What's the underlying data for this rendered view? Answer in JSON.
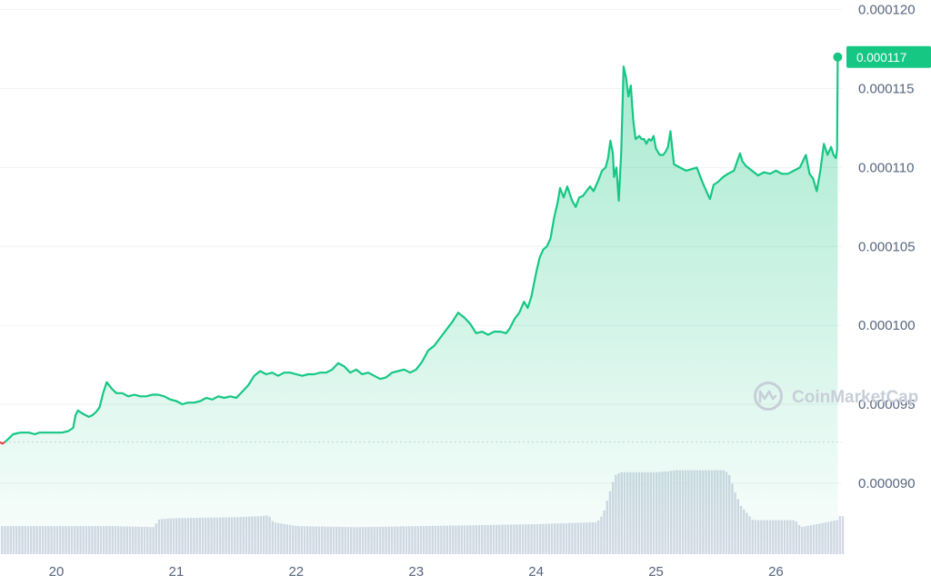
{
  "watermark": {
    "text": "CoinMarketCap",
    "logo": "coinmarketcap-logo-icon"
  },
  "chart_data": {
    "type": "area",
    "title": "",
    "xlabel": "",
    "ylabel": "",
    "x_ticks": [
      "20",
      "21",
      "22",
      "23",
      "24",
      "25",
      "26"
    ],
    "y_ticks": [
      "0.000090",
      "0.000095",
      "0.000100",
      "0.000105",
      "0.000110",
      "0.000115",
      "0.000120"
    ],
    "y_tick_values": [
      9e-05,
      9.5e-05,
      0.0001,
      0.000105,
      0.00011,
      0.000115,
      0.00012
    ],
    "ylim": [
      8.55e-05,
      0.0001205
    ],
    "xlim": [
      19.53,
      26.55
    ],
    "grid": true,
    "baseline_price": 9.26e-05,
    "current_price": {
      "label": "0.000117",
      "value": 0.000117
    },
    "colors": {
      "up": "#16c784",
      "down": "#ea3943",
      "badge": "#16c784",
      "volume": "#d4d8e6",
      "grid": "#eff2f5",
      "axis_text": "#58667e"
    },
    "series": [
      {
        "type": "line",
        "x": [
          19.53,
          19.55,
          19.57,
          19.6,
          19.64,
          19.7,
          19.77,
          19.82,
          19.86,
          19.9,
          19.95,
          20.0,
          20.05,
          20.1,
          20.14,
          20.16,
          20.18,
          20.22,
          20.27,
          20.3,
          20.33,
          20.36,
          20.39,
          20.42,
          20.46,
          20.5,
          20.55,
          20.6,
          20.65,
          20.7,
          20.75,
          20.8,
          20.85,
          20.9,
          20.95,
          21.0,
          21.05,
          21.1,
          21.15,
          21.2,
          21.25,
          21.3,
          21.35,
          21.4,
          21.45,
          21.5,
          21.55,
          21.6,
          21.65,
          21.7,
          21.75,
          21.8,
          21.85,
          21.9,
          21.95,
          22.0,
          22.05,
          22.1,
          22.15,
          22.2,
          22.25,
          22.3,
          22.35,
          22.4,
          22.45,
          22.5,
          22.55,
          22.6,
          22.65,
          22.7,
          22.75,
          22.8,
          22.85,
          22.9,
          22.95,
          23.0,
          23.02,
          23.05,
          23.1,
          23.15,
          23.2,
          23.25,
          23.3,
          23.35,
          23.4,
          23.45,
          23.5,
          23.55,
          23.6,
          23.65,
          23.7,
          23.75,
          23.78,
          23.82,
          23.86,
          23.9,
          23.93,
          23.96,
          24.0,
          24.03,
          24.06,
          24.09,
          24.12,
          24.15,
          24.18,
          24.2,
          24.23,
          24.26,
          24.3,
          24.33,
          24.36,
          24.39,
          24.42,
          24.45,
          24.48,
          24.52,
          24.55,
          24.58,
          24.6,
          24.62,
          24.64,
          24.65,
          24.67,
          24.69,
          24.71,
          24.73,
          24.75,
          24.77,
          24.79,
          24.81,
          24.83,
          24.86,
          24.88,
          24.9,
          24.92,
          24.94,
          24.96,
          24.98,
          25.0,
          25.03,
          25.06,
          25.08,
          25.1,
          25.12,
          25.15,
          25.2,
          25.25,
          25.3,
          25.34,
          25.38,
          25.42,
          25.45,
          25.48,
          25.52,
          25.56,
          25.6,
          25.65,
          25.7,
          25.72,
          25.75,
          25.8,
          25.85,
          25.9,
          25.95,
          26.0,
          26.05,
          26.1,
          26.15,
          26.2,
          26.25,
          26.28,
          26.31,
          26.34,
          26.37,
          26.4,
          26.43,
          26.46,
          26.48,
          26.5,
          26.51,
          26.515
        ],
        "y": [
          9.26e-05,
          9.25e-05,
          9.26e-05,
          9.28e-05,
          9.31e-05,
          9.32e-05,
          9.32e-05,
          9.31e-05,
          9.32e-05,
          9.32e-05,
          9.32e-05,
          9.32e-05,
          9.32e-05,
          9.33e-05,
          9.35e-05,
          9.43e-05,
          9.46e-05,
          9.44e-05,
          9.42e-05,
          9.43e-05,
          9.45e-05,
          9.48e-05,
          9.57e-05,
          9.64e-05,
          9.6e-05,
          9.57e-05,
          9.57e-05,
          9.55e-05,
          9.56e-05,
          9.55e-05,
          9.55e-05,
          9.56e-05,
          9.56e-05,
          9.55e-05,
          9.53e-05,
          9.52e-05,
          9.5e-05,
          9.51e-05,
          9.51e-05,
          9.52e-05,
          9.54e-05,
          9.53e-05,
          9.55e-05,
          9.54e-05,
          9.55e-05,
          9.54e-05,
          9.58e-05,
          9.62e-05,
          9.68e-05,
          9.71e-05,
          9.69e-05,
          9.7e-05,
          9.68e-05,
          9.7e-05,
          9.7e-05,
          9.69e-05,
          9.68e-05,
          9.69e-05,
          9.69e-05,
          9.7e-05,
          9.7e-05,
          9.72e-05,
          9.76e-05,
          9.74e-05,
          9.7e-05,
          9.72e-05,
          9.69e-05,
          9.7e-05,
          9.68e-05,
          9.66e-05,
          9.67e-05,
          9.7e-05,
          9.71e-05,
          9.72e-05,
          9.7e-05,
          9.72e-05,
          9.74e-05,
          9.77e-05,
          9.84e-05,
          9.87e-05,
          9.92e-05,
          9.97e-05,
          0.0001002,
          0.0001008,
          0.0001005,
          0.0001001,
          9.95e-05,
          9.96e-05,
          9.94e-05,
          9.96e-05,
          9.96e-05,
          9.95e-05,
          9.98e-05,
          0.0001004,
          0.0001008,
          0.0001015,
          0.0001011,
          0.0001018,
          0.0001033,
          0.0001043,
          0.0001048,
          0.000105,
          0.0001055,
          0.0001068,
          0.0001078,
          0.0001087,
          0.0001081,
          0.0001088,
          0.0001079,
          0.0001075,
          0.0001081,
          0.0001082,
          0.0001085,
          0.0001088,
          0.0001085,
          0.0001092,
          0.0001098,
          0.00011,
          0.0001106,
          0.0001117,
          0.0001109,
          0.0001094,
          0.00011,
          0.0001079,
          0.000111,
          0.0001164,
          0.0001157,
          0.0001145,
          0.0001152,
          0.000113,
          0.0001118,
          0.000112,
          0.0001118,
          0.0001118,
          0.0001115,
          0.0001118,
          0.0001117,
          0.000112,
          0.0001112,
          0.0001108,
          0.0001108,
          0.000111,
          0.0001113,
          0.0001123,
          0.0001102,
          0.00011,
          0.0001098,
          0.0001099,
          0.00011,
          0.0001092,
          0.0001085,
          0.000108,
          0.0001089,
          0.0001091,
          0.0001094,
          0.0001096,
          0.0001098,
          0.0001109,
          0.0001104,
          0.0001101,
          0.0001098,
          0.0001095,
          0.0001097,
          0.0001096,
          0.0001098,
          0.0001096,
          0.0001096,
          0.0001098,
          0.00011,
          0.0001108,
          0.0001096,
          0.0001093,
          0.0001085,
          0.0001098,
          0.0001115,
          0.0001108,
          0.0001113,
          0.0001108,
          0.0001106,
          0.0001111,
          0.000117
        ]
      }
    ],
    "volume": {
      "x": [
        19.53,
        20.3,
        20.5,
        20.8,
        20.85,
        21.0,
        21.5,
        21.7,
        21.76,
        21.8,
        22.0,
        22.5,
        23.0,
        23.5,
        24.0,
        24.5,
        24.55,
        24.6,
        24.65,
        24.7,
        24.75,
        25.0,
        25.1,
        25.15,
        25.5,
        25.56,
        25.6,
        25.65,
        25.7,
        25.8,
        26.0,
        26.15,
        26.2,
        26.5,
        26.515
      ],
      "v": [
        0.28,
        0.28,
        0.28,
        0.27,
        0.35,
        0.36,
        0.37,
        0.38,
        0.39,
        0.32,
        0.28,
        0.27,
        0.28,
        0.29,
        0.3,
        0.32,
        0.4,
        0.6,
        0.79,
        0.82,
        0.82,
        0.82,
        0.83,
        0.84,
        0.84,
        0.84,
        0.8,
        0.62,
        0.48,
        0.34,
        0.34,
        0.34,
        0.27,
        0.34,
        0.38
      ]
    }
  }
}
